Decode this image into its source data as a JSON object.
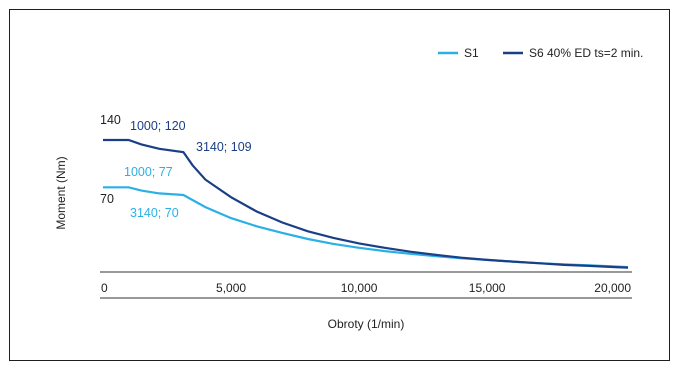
{
  "chart_data": {
    "type": "line",
    "title": "",
    "xlabel": "Obroty (1/min)",
    "ylabel": "Moment (Nm)",
    "xlim": [
      0,
      20500
    ],
    "ylim": [
      0,
      150
    ],
    "x_ticks": [
      0,
      5000,
      10000,
      15000,
      20000
    ],
    "x_tick_labels": [
      "0",
      "5,000",
      "10,000",
      "15,000",
      "20,000"
    ],
    "legend_position": "top-right",
    "grid": false,
    "colors": {
      "S1": "#2bb0e6",
      "S6": "#1b3f86",
      "axis": "#333333"
    },
    "series": [
      {
        "name": "S1",
        "color": "#2bb0e6",
        "points": [
          [
            0,
            77
          ],
          [
            1000,
            77
          ],
          [
            1500,
            74
          ],
          [
            2200,
            71.5
          ],
          [
            3140,
            70
          ],
          [
            4000,
            59
          ],
          [
            5000,
            49
          ],
          [
            6000,
            41.5
          ],
          [
            7000,
            35.5
          ],
          [
            8000,
            30
          ],
          [
            9000,
            25.5
          ],
          [
            10000,
            22
          ],
          [
            11000,
            19
          ],
          [
            12000,
            16.5
          ],
          [
            13000,
            14.5
          ],
          [
            14000,
            12.5
          ],
          [
            15000,
            11
          ],
          [
            16000,
            9.5
          ],
          [
            17000,
            8
          ],
          [
            18000,
            7
          ],
          [
            19000,
            6
          ],
          [
            20000,
            5
          ],
          [
            20500,
            4.5
          ]
        ]
      },
      {
        "name": "S6 40% ED ts=2 min.",
        "color": "#1b3f86",
        "points": [
          [
            0,
            120
          ],
          [
            1000,
            120
          ],
          [
            1500,
            116
          ],
          [
            2200,
            112
          ],
          [
            3140,
            109
          ],
          [
            3500,
            97
          ],
          [
            4000,
            84
          ],
          [
            5000,
            68
          ],
          [
            6000,
            55
          ],
          [
            7000,
            45
          ],
          [
            8000,
            37
          ],
          [
            9000,
            31
          ],
          [
            10000,
            26
          ],
          [
            11000,
            22
          ],
          [
            12000,
            18.5
          ],
          [
            13000,
            15.5
          ],
          [
            14000,
            13
          ],
          [
            15000,
            11
          ],
          [
            16000,
            9.5
          ],
          [
            17000,
            8
          ],
          [
            18000,
            6.5
          ],
          [
            19000,
            5.5
          ],
          [
            20000,
            4.5
          ],
          [
            20500,
            4
          ]
        ]
      }
    ],
    "annotations": [
      {
        "text": "140",
        "series": "S6 40% ED ts=2 min.",
        "x": 0,
        "y": 140,
        "color": "#222222"
      },
      {
        "text": "1000; 120",
        "series": "S6 40% ED ts=2 min.",
        "x": 1000,
        "y": 120,
        "color": "#1b3f86"
      },
      {
        "text": "3140; 109",
        "series": "S6 40% ED ts=2 min.",
        "x": 3140,
        "y": 109,
        "color": "#1b3f86"
      },
      {
        "text": "1000; 77",
        "series": "S1",
        "x": 1000,
        "y": 77,
        "color": "#2bb0e6"
      },
      {
        "text": "70",
        "series": "S1",
        "x": 0,
        "y": 70,
        "color": "#222222"
      },
      {
        "text": "3140; 70",
        "series": "S1",
        "x": 3140,
        "y": 70,
        "color": "#2bb0e6"
      }
    ]
  }
}
